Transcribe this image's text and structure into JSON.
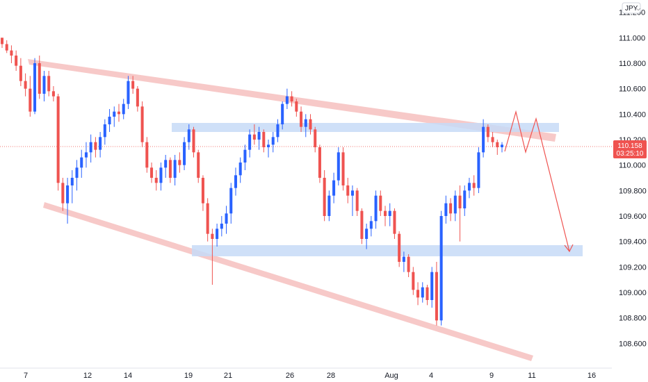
{
  "chart_data": {
    "type": "candlestick",
    "instrument_currency": "JPY",
    "current_price": "110.158",
    "countdown": "03:25:10",
    "y_ticks": [
      "108.600",
      "108.800",
      "109.000",
      "109.200",
      "109.400",
      "109.600",
      "109.800",
      "110.000",
      "110.200",
      "110.400",
      "110.600",
      "110.800",
      "111.000",
      "111.200"
    ],
    "x_ticks": [
      "7",
      "12",
      "14",
      "19",
      "21",
      "26",
      "28",
      "Aug",
      "4",
      "9",
      "11",
      "16"
    ],
    "ylim": [
      108.52,
      111.22
    ],
    "grid": false,
    "colors": {
      "up": "#2962ff",
      "down": "#ef5350",
      "channel": "#f4b7b5",
      "zone": "#c7dbf7",
      "badge": "#ef5350",
      "projection": "#ef5350"
    },
    "candles": [
      [
        111.0,
        111.0,
        110.92,
        110.95
      ],
      [
        110.95,
        110.98,
        110.88,
        110.9
      ],
      [
        110.9,
        110.94,
        110.8,
        110.86
      ],
      [
        110.86,
        110.9,
        110.74,
        110.78
      ],
      [
        110.78,
        110.84,
        110.62,
        110.66
      ],
      [
        110.66,
        110.72,
        110.54,
        110.6
      ],
      [
        110.6,
        110.7,
        110.38,
        110.42
      ],
      [
        110.42,
        110.84,
        110.4,
        110.8
      ],
      [
        110.8,
        110.86,
        110.52,
        110.56
      ],
      [
        110.56,
        110.74,
        110.5,
        110.7
      ],
      [
        110.7,
        110.74,
        110.54,
        110.58
      ],
      [
        110.58,
        110.62,
        110.5,
        110.54
      ],
      [
        110.54,
        110.56,
        109.8,
        109.86
      ],
      [
        109.86,
        109.9,
        109.64,
        109.7
      ],
      [
        109.7,
        109.9,
        109.54,
        109.84
      ],
      [
        109.84,
        109.96,
        109.7,
        109.9
      ],
      [
        109.9,
        110.04,
        109.8,
        109.98
      ],
      [
        109.98,
        110.12,
        109.9,
        110.06
      ],
      [
        110.06,
        110.18,
        109.98,
        110.1
      ],
      [
        110.1,
        110.24,
        110.02,
        110.18
      ],
      [
        110.18,
        110.22,
        110.06,
        110.12
      ],
      [
        110.12,
        110.26,
        110.06,
        110.22
      ],
      [
        110.22,
        110.36,
        110.16,
        110.32
      ],
      [
        110.32,
        110.44,
        110.26,
        110.38
      ],
      [
        110.38,
        110.46,
        110.3,
        110.42
      ],
      [
        110.42,
        110.48,
        110.34,
        110.4
      ],
      [
        110.4,
        110.52,
        110.36,
        110.48
      ],
      [
        110.48,
        110.7,
        110.44,
        110.66
      ],
      [
        110.66,
        110.7,
        110.56,
        110.6
      ],
      [
        110.6,
        110.62,
        110.42,
        110.46
      ],
      [
        110.46,
        110.5,
        110.14,
        110.18
      ],
      [
        110.18,
        110.22,
        109.94,
        109.98
      ],
      [
        109.98,
        110.02,
        109.86,
        109.9
      ],
      [
        109.9,
        109.96,
        109.8,
        109.86
      ],
      [
        109.86,
        110.02,
        109.8,
        109.98
      ],
      [
        109.98,
        110.08,
        109.9,
        110.04
      ],
      [
        110.04,
        110.06,
        109.86,
        109.9
      ],
      [
        109.9,
        110.08,
        109.84,
        110.04
      ],
      [
        110.04,
        110.1,
        109.94,
        110.0
      ],
      [
        110.0,
        110.22,
        109.96,
        110.18
      ],
      [
        110.18,
        110.32,
        110.12,
        110.28
      ],
      [
        110.28,
        110.3,
        110.06,
        110.1
      ],
      [
        110.1,
        110.12,
        109.86,
        109.9
      ],
      [
        109.9,
        109.92,
        109.64,
        109.7
      ],
      [
        109.7,
        109.74,
        109.4,
        109.46
      ],
      [
        109.46,
        109.5,
        109.06,
        109.42
      ],
      [
        109.42,
        109.54,
        109.36,
        109.5
      ],
      [
        109.5,
        109.6,
        109.44,
        109.54
      ],
      [
        109.54,
        109.68,
        109.46,
        109.62
      ],
      [
        109.62,
        109.86,
        109.54,
        109.82
      ],
      [
        109.82,
        109.98,
        109.76,
        109.92
      ],
      [
        109.92,
        110.06,
        109.86,
        110.02
      ],
      [
        110.02,
        110.16,
        109.96,
        110.12
      ],
      [
        110.12,
        110.28,
        110.06,
        110.24
      ],
      [
        110.24,
        110.32,
        110.16,
        110.2
      ],
      [
        110.2,
        110.3,
        110.12,
        110.26
      ],
      [
        110.26,
        110.28,
        110.1,
        110.14
      ],
      [
        110.14,
        110.2,
        110.06,
        110.16
      ],
      [
        110.16,
        110.26,
        110.1,
        110.22
      ],
      [
        110.22,
        110.36,
        110.18,
        110.32
      ],
      [
        110.32,
        110.5,
        110.28,
        110.48
      ],
      [
        110.48,
        110.6,
        110.44,
        110.54
      ],
      [
        110.54,
        110.58,
        110.46,
        110.5
      ],
      [
        110.5,
        110.52,
        110.38,
        110.42
      ],
      [
        110.42,
        110.46,
        110.26,
        110.3
      ],
      [
        110.3,
        110.4,
        110.22,
        110.36
      ],
      [
        110.36,
        110.4,
        110.24,
        110.28
      ],
      [
        110.28,
        110.3,
        110.1,
        110.14
      ],
      [
        110.14,
        110.16,
        109.86,
        109.9
      ],
      [
        109.9,
        109.96,
        109.56,
        109.6
      ],
      [
        109.6,
        109.8,
        109.56,
        109.76
      ],
      [
        109.76,
        109.94,
        109.7,
        109.88
      ],
      [
        109.88,
        110.14,
        109.84,
        110.1
      ],
      [
        110.1,
        110.14,
        109.8,
        109.84
      ],
      [
        109.84,
        109.9,
        109.7,
        109.76
      ],
      [
        109.76,
        109.84,
        109.6,
        109.8
      ],
      [
        109.8,
        109.82,
        109.6,
        109.64
      ],
      [
        109.64,
        109.66,
        109.38,
        109.42
      ],
      [
        109.42,
        109.54,
        109.34,
        109.5
      ],
      [
        109.5,
        109.6,
        109.44,
        109.56
      ],
      [
        109.56,
        109.8,
        109.5,
        109.76
      ],
      [
        109.76,
        109.8,
        109.6,
        109.64
      ],
      [
        109.64,
        109.68,
        109.52,
        109.6
      ],
      [
        109.6,
        109.7,
        109.52,
        109.64
      ],
      [
        109.64,
        109.66,
        109.42,
        109.46
      ],
      [
        109.46,
        109.48,
        109.2,
        109.24
      ],
      [
        109.24,
        109.32,
        109.16,
        109.28
      ],
      [
        109.28,
        109.3,
        109.12,
        109.16
      ],
      [
        109.16,
        109.2,
        108.98,
        109.02
      ],
      [
        109.02,
        109.08,
        108.9,
        108.96
      ],
      [
        108.96,
        109.08,
        108.92,
        109.04
      ],
      [
        109.04,
        109.06,
        108.9,
        108.94
      ],
      [
        108.94,
        109.2,
        108.88,
        109.16
      ],
      [
        109.16,
        109.24,
        108.74,
        108.78
      ],
      [
        108.78,
        109.64,
        108.74,
        109.6
      ],
      [
        109.6,
        109.76,
        109.54,
        109.7
      ],
      [
        109.7,
        109.74,
        109.56,
        109.62
      ],
      [
        109.62,
        109.8,
        109.56,
        109.76
      ],
      [
        109.76,
        109.84,
        109.4,
        109.66
      ],
      [
        109.66,
        109.84,
        109.6,
        109.8
      ],
      [
        109.8,
        109.9,
        109.74,
        109.86
      ],
      [
        109.86,
        109.92,
        109.76,
        109.82
      ],
      [
        109.82,
        110.14,
        109.78,
        110.1
      ],
      [
        110.1,
        110.36,
        110.06,
        110.3
      ],
      [
        110.3,
        110.32,
        110.18,
        110.22
      ],
      [
        110.22,
        110.26,
        110.14,
        110.18
      ],
      [
        110.18,
        110.2,
        110.08,
        110.14
      ],
      [
        110.14,
        110.18,
        110.1,
        110.16
      ]
    ]
  }
}
